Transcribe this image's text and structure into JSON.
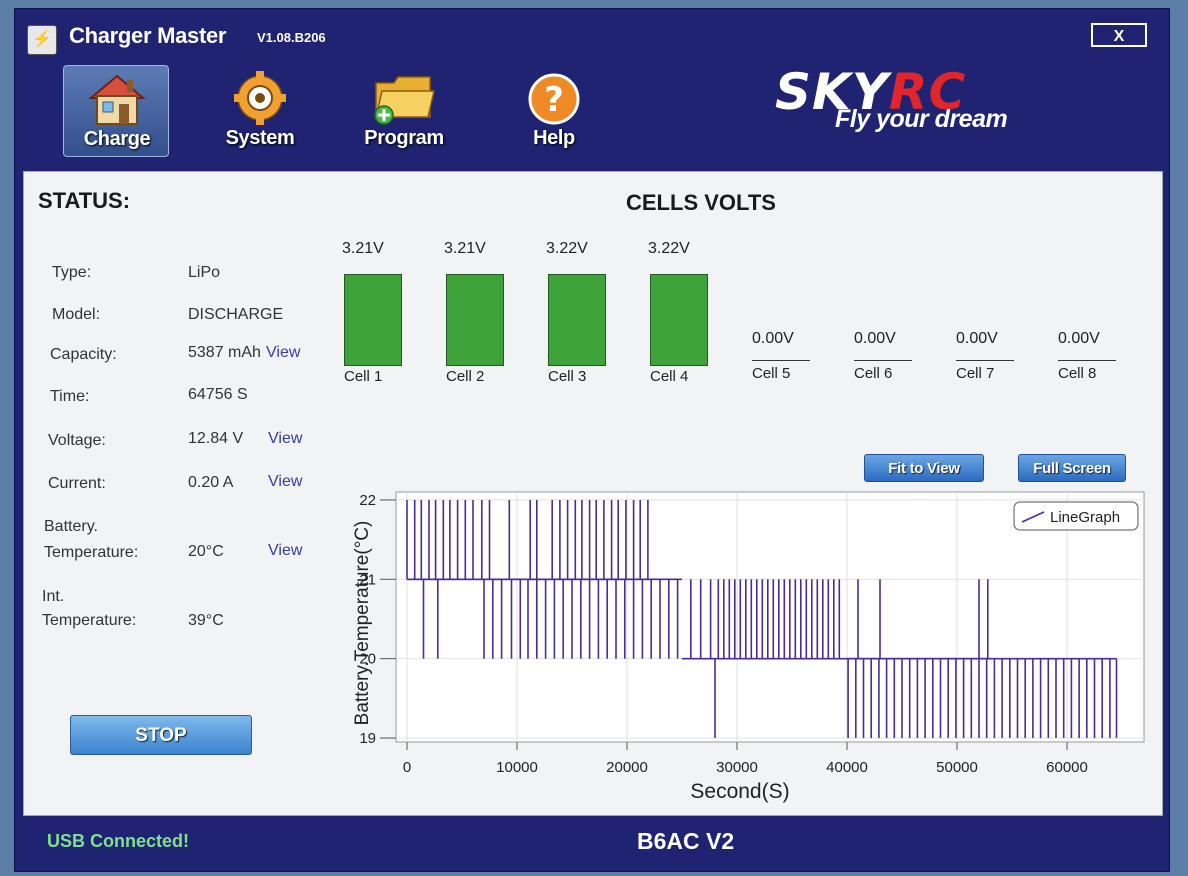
{
  "window": {
    "title": "Charger Master",
    "version": "V1.08.B206",
    "close_label": "X"
  },
  "nav": {
    "items": [
      {
        "label": "Charge",
        "icon": "house-icon",
        "active": true
      },
      {
        "label": "System",
        "icon": "gear-icon"
      },
      {
        "label": "Program",
        "icon": "folder-icon"
      },
      {
        "label": "Help",
        "icon": "help-icon"
      }
    ]
  },
  "brand": {
    "logo_sky": "SKY",
    "logo_rc": "RC",
    "tagline": "Fly your dream"
  },
  "status": {
    "title": "STATUS:",
    "rows": [
      {
        "label": "Type:",
        "value": "LiPo"
      },
      {
        "label": "Model:",
        "value": "DISCHARGE"
      },
      {
        "label": "Capacity:",
        "value": "5387 mAh",
        "link": "View"
      },
      {
        "label": "Time:",
        "value": "64756 S"
      },
      {
        "label": "Voltage:",
        "value": "12.84 V",
        "link": "View"
      },
      {
        "label": "Current:",
        "value": "0.20 A",
        "link": "View"
      },
      {
        "label_line1": "Battery.",
        "label_line2": "Temperature:",
        "value": "20°C",
        "link": "View"
      },
      {
        "label_line1": "Int.",
        "label_line2": "Temperature:",
        "value": "39°C"
      }
    ],
    "stop_label": "STOP"
  },
  "cells": {
    "title": "CELLS VOLTS",
    "items": [
      {
        "name": "Cell 1",
        "voltage": "3.21V",
        "active": true
      },
      {
        "name": "Cell 2",
        "voltage": "3.21V",
        "active": true
      },
      {
        "name": "Cell 3",
        "voltage": "3.22V",
        "active": true
      },
      {
        "name": "Cell 4",
        "voltage": "3.22V",
        "active": true
      },
      {
        "name": "Cell 5",
        "voltage": "0.00V",
        "active": false
      },
      {
        "name": "Cell 6",
        "voltage": "0.00V",
        "active": false
      },
      {
        "name": "Cell 7",
        "voltage": "0.00V",
        "active": false
      },
      {
        "name": "Cell 8",
        "voltage": "0.00V",
        "active": false
      }
    ]
  },
  "graph_controls": {
    "fit_label": "Fit to View",
    "full_label": "Full Screen"
  },
  "chart_data": {
    "type": "line",
    "title": "",
    "xlabel": "Second(S)",
    "ylabel": "Battery.Temperature(°C)",
    "xlim": [
      -1000,
      67000
    ],
    "ylim": [
      18.95,
      22.1
    ],
    "xticks": [
      0,
      10000,
      20000,
      30000,
      40000,
      50000,
      60000
    ],
    "yticks": [
      19,
      20,
      21,
      22
    ],
    "legend": {
      "position": "top-right",
      "entries": [
        "LineGraph"
      ]
    },
    "line_color": "#4b2c96",
    "series": [
      {
        "name": "LineGraph",
        "segments": [
          {
            "x_start": 0,
            "x_end": 6800,
            "baseline": 21,
            "spike_times": [
              0,
              700,
              1300,
              2000,
              2600,
              3300,
              3900,
              4600,
              5300,
              6000
            ],
            "spike_value": 22
          },
          {
            "x_start": 0,
            "x_end": 6800,
            "baseline": 21,
            "spike_times": [
              1500,
              2800
            ],
            "spike_value": 20
          },
          {
            "x_start": 6800,
            "x_end": 22300,
            "baseline": 21,
            "spike_times": [
              6800,
              7500,
              9300,
              11200,
              11800,
              13200,
              13900,
              14600,
              15300,
              15900,
              16600,
              17200,
              17900,
              18600,
              19200,
              19900,
              20600,
              21200,
              21900
            ],
            "spike_value": 22
          },
          {
            "x_start": 6800,
            "x_end": 25000,
            "baseline": 21,
            "spike_times": [
              7000,
              7800,
              8600,
              9500,
              10300,
              11000,
              11800,
              12600,
              13400,
              14200,
              15000,
              15800,
              16600,
              17400,
              18200,
              19000,
              19800,
              20600,
              21400,
              22200,
              23000,
              23800,
              24600
            ],
            "spike_value": 20
          },
          {
            "x_start": 25000,
            "x_end": 40000,
            "baseline": 20,
            "spike_times": [
              25800,
              26700,
              27600,
              28300,
              28800,
              29300,
              29800,
              30300,
              30800,
              31300,
              31800,
              32300,
              32800,
              33300,
              33800,
              34300,
              34800,
              35300,
              35800,
              36300,
              36800,
              37300,
              37800,
              38300,
              38800,
              39300
            ],
            "spike_value": 21
          },
          {
            "x_start": 28000,
            "x_end": 28000,
            "baseline": 20,
            "spike_times": [
              28000
            ],
            "spike_value": 19
          },
          {
            "x_start": 40000,
            "x_end": 64500,
            "baseline": 20,
            "spike_times": [
              40100,
              40800,
              41500,
              42200,
              42900,
              43600,
              44300,
              45000,
              45700,
              46400,
              47100,
              47800,
              48500,
              49200,
              49900,
              50600,
              51300,
              52000,
              52700,
              53400,
              54100,
              54800,
              55500,
              56200,
              56900,
              57600,
              58300,
              59000,
              59700,
              60400,
              61100,
              61800,
              62500,
              63200,
              63900,
              64500
            ],
            "spike_value": 19
          },
          {
            "x_start": 40000,
            "x_end": 53000,
            "baseline": 20,
            "spike_times": [
              41000,
              43000,
              52000,
              52800
            ],
            "spike_value": 21
          }
        ]
      }
    ]
  },
  "statusbar": {
    "connection": "USB  Connected!",
    "device": "B6AC V2"
  }
}
